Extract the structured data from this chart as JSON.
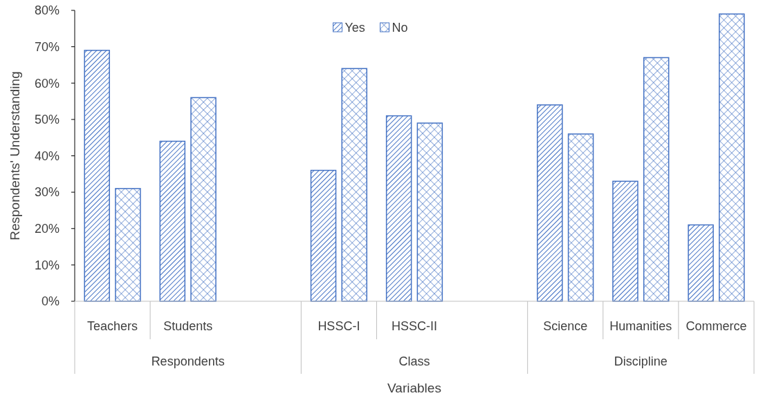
{
  "chart_data": {
    "type": "bar",
    "xlabel": "Variables",
    "ylabel": "Respondents' Understanding",
    "categories": [
      "Teachers",
      "Students",
      null,
      "HSSC-I",
      "HSSC-II",
      null,
      "Science",
      "Humanities",
      "Commerce"
    ],
    "series": [
      {
        "name": "Yes",
        "color": "#4472c4",
        "values": [
          69,
          44,
          null,
          36,
          51,
          null,
          54,
          33,
          21
        ]
      },
      {
        "name": "No",
        "color": "#4472c4",
        "values": [
          31,
          56,
          null,
          64,
          49,
          null,
          46,
          67,
          79
        ]
      }
    ],
    "ylim": [
      0,
      80
    ],
    "yticks": [
      {
        "value": 0,
        "label": "0%"
      },
      {
        "value": 10,
        "label": "10%"
      },
      {
        "value": 20,
        "label": "20%"
      },
      {
        "value": 30,
        "label": "30%"
      },
      {
        "value": 40,
        "label": "40%"
      },
      {
        "value": 50,
        "label": "50%"
      },
      {
        "value": 60,
        "label": "60%"
      },
      {
        "value": 70,
        "label": "70%"
      },
      {
        "value": 80,
        "label": "80%"
      }
    ],
    "annotations": [
      "Respondents",
      "Class",
      "Discipline"
    ],
    "legend": "top",
    "grid": false
  }
}
